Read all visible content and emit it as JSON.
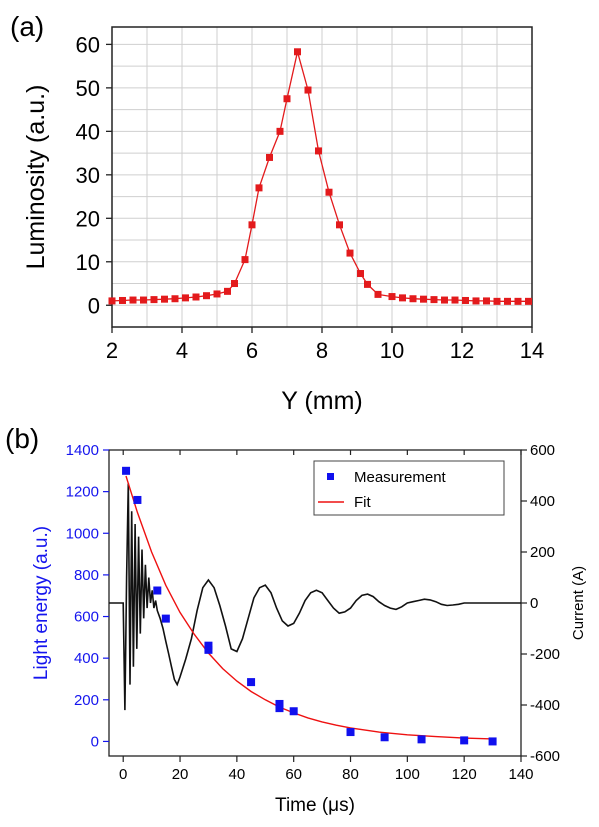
{
  "chart_data": [
    {
      "panel_label": "(a)",
      "type": "line",
      "xlabel": "Y (mm)",
      "ylabel": "Luminosity (a.u.)",
      "xlim": [
        2,
        14
      ],
      "ylim": [
        -5,
        64
      ],
      "xticks": [
        2,
        4,
        6,
        8,
        10,
        12,
        14
      ],
      "yticks": [
        0,
        10,
        20,
        30,
        40,
        50,
        60
      ],
      "grid": true,
      "series": [
        {
          "color": "#e31a1c",
          "marker": "square",
          "x": [
            2.0,
            2.3,
            2.6,
            2.9,
            3.2,
            3.5,
            3.8,
            4.1,
            4.4,
            4.7,
            5.0,
            5.3,
            5.5,
            5.8,
            6.0,
            6.2,
            6.5,
            6.8,
            7.0,
            7.3,
            7.6,
            7.9,
            8.2,
            8.5,
            8.8,
            9.1,
            9.3,
            9.6,
            10.0,
            10.3,
            10.6,
            10.9,
            11.2,
            11.5,
            11.8,
            12.1,
            12.4,
            12.7,
            13.0,
            13.3,
            13.6,
            13.9
          ],
          "y": [
            1.0,
            1.1,
            1.2,
            1.2,
            1.3,
            1.4,
            1.5,
            1.7,
            1.9,
            2.2,
            2.6,
            3.2,
            5.0,
            10.5,
            18.5,
            27.0,
            34.0,
            40.0,
            47.5,
            58.3,
            49.5,
            35.5,
            26.0,
            18.5,
            12.0,
            7.3,
            4.8,
            2.5,
            2.0,
            1.7,
            1.5,
            1.4,
            1.3,
            1.2,
            1.2,
            1.1,
            1.0,
            1.0,
            0.9,
            0.9,
            0.9,
            0.9
          ]
        }
      ]
    },
    {
      "panel_label": "(b)",
      "type": "scatter",
      "xlabel": "Time (μs)",
      "ylabel_left": "Light energy (a.u.)",
      "ylabel_right": "Current (A)",
      "xlim": [
        -5,
        140
      ],
      "ylim_left": [
        -70,
        1400
      ],
      "ylim_right": [
        -600,
        600
      ],
      "xticks": [
        0,
        20,
        40,
        60,
        80,
        100,
        120,
        140
      ],
      "yticks_left": [
        0,
        200,
        400,
        600,
        800,
        1000,
        1200,
        1400
      ],
      "yticks_right": [
        -600,
        -400,
        -200,
        0,
        200,
        400,
        600
      ],
      "legend": {
        "position": "top-right",
        "entries": [
          "Measurement",
          "Fit"
        ]
      },
      "series": [
        {
          "name": "Measurement",
          "color": "#1010ee",
          "marker": "square",
          "axis": "left",
          "x": [
            1,
            5,
            12,
            15,
            30,
            30,
            45,
            55,
            55,
            60,
            80,
            92,
            105,
            120,
            130
          ],
          "y": [
            1300,
            1160,
            725,
            590,
            460,
            440,
            285,
            180,
            160,
            145,
            45,
            20,
            10,
            5,
            0
          ]
        },
        {
          "name": "Fit",
          "color": "#ee1111",
          "type": "line",
          "axis": "left",
          "x": [
            1,
            5,
            10,
            15,
            20,
            25,
            30,
            35,
            40,
            45,
            50,
            55,
            60,
            65,
            70,
            75,
            80,
            90,
            100,
            110,
            120,
            130
          ],
          "y": [
            1275,
            1100,
            910,
            750,
            620,
            515,
            425,
            350,
            290,
            240,
            200,
            165,
            137,
            113,
            94,
            78,
            65,
            45,
            32,
            23,
            16,
            12
          ]
        },
        {
          "name": "Current",
          "color": "#111111",
          "type": "line",
          "axis": "right",
          "x": [
            -5,
            0,
            0.6,
            1.2,
            1.8,
            2.4,
            3.0,
            3.6,
            4.2,
            4.8,
            5.4,
            6.0,
            6.6,
            7.2,
            7.8,
            8.4,
            9.0,
            9.6,
            10.2,
            10.8,
            11.4,
            12,
            13,
            14,
            15,
            16,
            17,
            18,
            19,
            20,
            22,
            24,
            26,
            28,
            30,
            32,
            34,
            36,
            38,
            40,
            42,
            44,
            46,
            48,
            50,
            52,
            54,
            56,
            58,
            60,
            62,
            64,
            66,
            68,
            70,
            72,
            74,
            76,
            78,
            80,
            82,
            84,
            86,
            88,
            90,
            92,
            94,
            96,
            98,
            100,
            102,
            104,
            106,
            108,
            110,
            112,
            114,
            116,
            118,
            120,
            125,
            130,
            135,
            140
          ],
          "y": [
            0,
            0,
            -420,
            100,
            470,
            -320,
            360,
            -250,
            310,
            -180,
            260,
            -120,
            210,
            -60,
            150,
            -20,
            100,
            0,
            50,
            -20,
            10,
            -30,
            -60,
            -100,
            -150,
            -200,
            -250,
            -300,
            -320,
            -290,
            -220,
            -140,
            -30,
            60,
            90,
            60,
            -10,
            -90,
            -180,
            -190,
            -140,
            -60,
            20,
            60,
            70,
            40,
            -20,
            -70,
            -90,
            -80,
            -40,
            10,
            40,
            50,
            40,
            10,
            -20,
            -40,
            -35,
            -20,
            10,
            30,
            35,
            25,
            5,
            -10,
            -20,
            -25,
            -15,
            0,
            5,
            10,
            15,
            12,
            5,
            -5,
            -10,
            -8,
            -5,
            0,
            0,
            0,
            0,
            0
          ]
        }
      ]
    }
  ]
}
